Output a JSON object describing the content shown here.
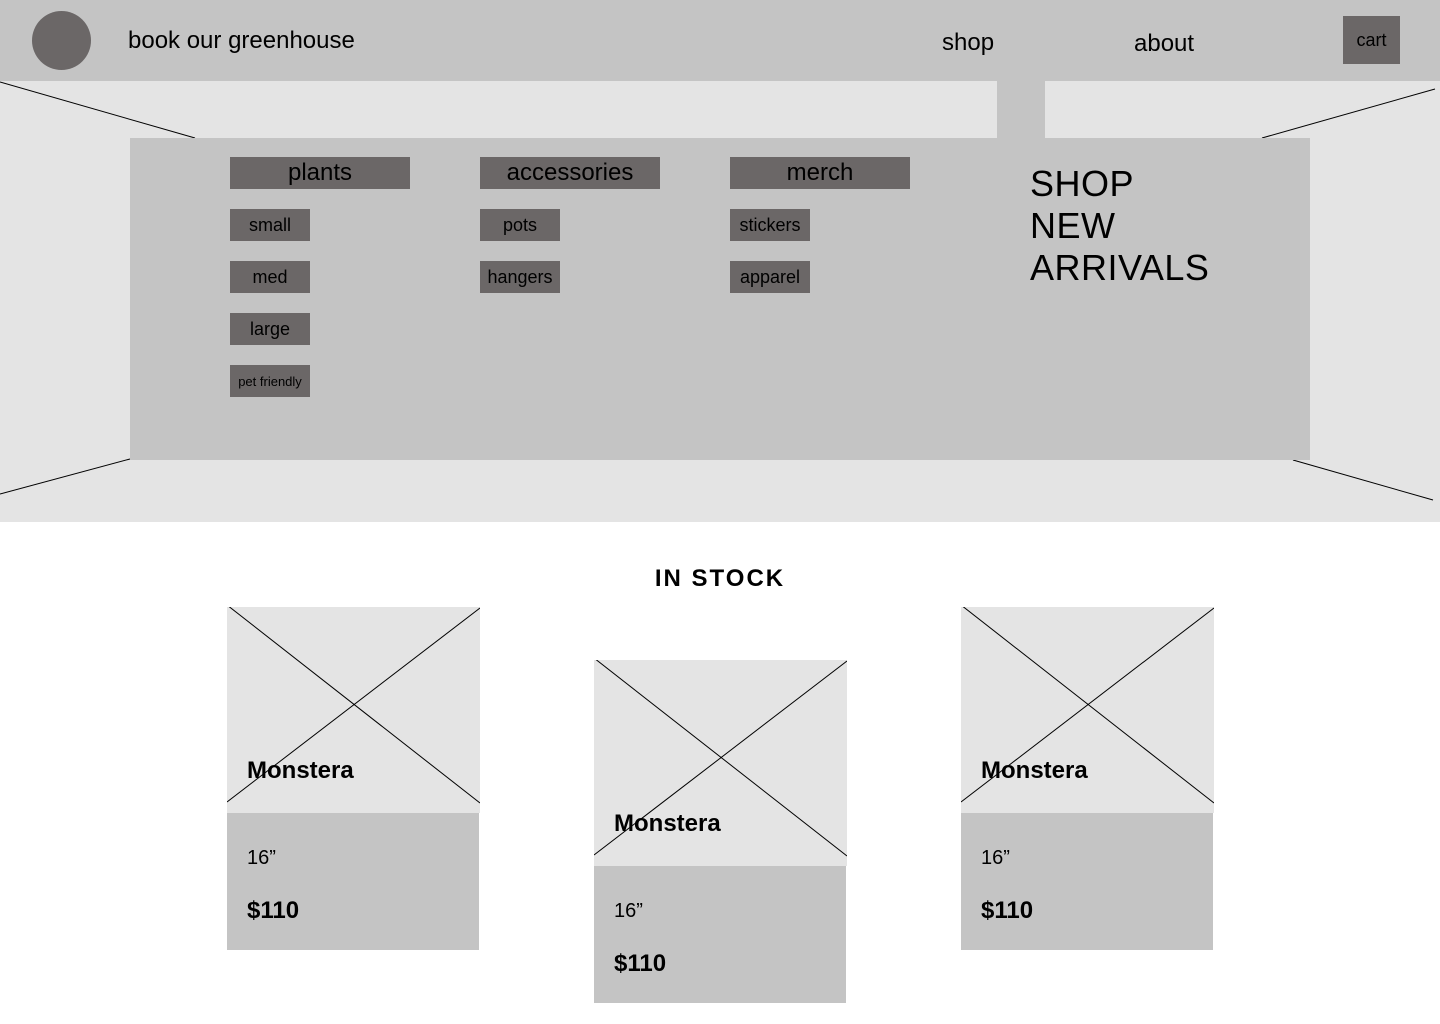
{
  "header": {
    "brand": "book our greenhouse",
    "nav": {
      "shop": "shop",
      "about": "about"
    },
    "cart_label": "cart"
  },
  "menu": {
    "categories": [
      {
        "label": "plants",
        "items": [
          "small",
          "med",
          "large",
          "pet friendly"
        ]
      },
      {
        "label": "accessories",
        "items": [
          "pots",
          "hangers"
        ]
      },
      {
        "label": "merch",
        "items": [
          "stickers",
          "apparel"
        ]
      }
    ],
    "promo": [
      "SHOP",
      "NEW",
      "ARRIVALS"
    ]
  },
  "stock": {
    "title": "IN STOCK",
    "products": [
      {
        "name": "Monstera",
        "size": "16”",
        "price": "$110"
      },
      {
        "name": "Monstera",
        "size": "16”",
        "price": "$110"
      },
      {
        "name": "Monstera",
        "size": "16”",
        "price": "$110"
      }
    ]
  },
  "colors": {
    "header_bg": "#c4c4c4",
    "hero_bg": "#e4e4e4",
    "dark_block": "#6b6767"
  }
}
